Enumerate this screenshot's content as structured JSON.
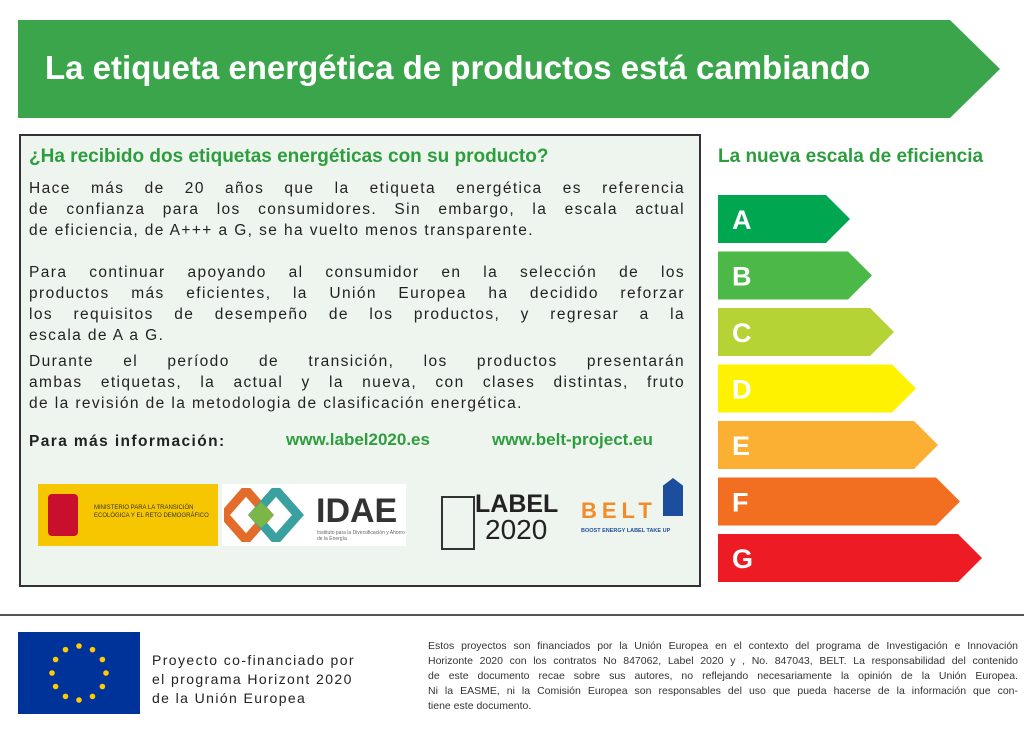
{
  "banner": {
    "title": "La etiqueta energética de productos está cambiando"
  },
  "info": {
    "heading": "¿Ha recibido dos etiquetas energéticas con su producto?",
    "paragraphs": [
      [
        "Hace más de  20 años  que la etiqueta energética es referencia",
        "de confianza para  los consumidores.  Sin embargo, la escala actual",
        "de eficiencia, de A+++ a G, se ha vuelto menos transparente."
      ],
      [
        "Para  continuar apoyando  al consumidor en la selección  de los",
        "productos más eficientes, la Unión Europea ha decidido reforzar",
        "los  requisitos de  desempeño de los productos,  y  regresar a la",
        "escala de A a G."
      ],
      [
        "Durante el período de transición, los productos presentarán",
        "ambas etiquetas, la actual y la nueva, con clases distintas, fruto",
        "de la revisión de la metodologia de clasificación energética."
      ]
    ],
    "more_label": "Para más información:",
    "links": [
      "www.label2020.es",
      "www.belt-project.eu"
    ],
    "logos": {
      "ministry": "MINISTERIO PARA LA TRANSICIÓN ECOLÓGICA Y EL RETO DEMOGRÁFICO",
      "idae": "IDAE",
      "idae_sub": "Instituto para la Diversificación y Ahorro de la Energía",
      "label_word": "LABEL",
      "label_year": "2020",
      "belt": "BELT",
      "belt_sub": "BOOST ENERGY LABEL TAKE UP"
    }
  },
  "scale": {
    "title": "La nueva escala de eficiencia",
    "classes": [
      {
        "label": "A",
        "color": "#00a650"
      },
      {
        "label": "B",
        "color": "#4cb848"
      },
      {
        "label": "C",
        "color": "#b5d334"
      },
      {
        "label": "D",
        "color": "#fff200"
      },
      {
        "label": "E",
        "color": "#fbb034"
      },
      {
        "label": "F",
        "color": "#f26f21"
      },
      {
        "label": "G",
        "color": "#ed1c24"
      }
    ]
  },
  "footer": {
    "cofinanced": [
      "Proyecto co-financiado por",
      "el programa  Horizont 2020",
      "de la Unión Europea"
    ],
    "disclaimer": [
      "Estos proyectos son financiados por la Unión Europea en el contexto del programa de Investigación e Innovación",
      "Horizonte 2020 con los contratos No 847062, Label 2020 y , No. 847043, BELT.  La  responsabilidad  del  contenido",
      "de este documento recae sobre sus autores, no reflejando necesariamente la opinión de la Unión Europea.",
      "Ni la EASME,  ni la Comisión  Europea son responsables del uso que pueda hacerse de la información que  con-",
      "tiene este documento."
    ]
  }
}
